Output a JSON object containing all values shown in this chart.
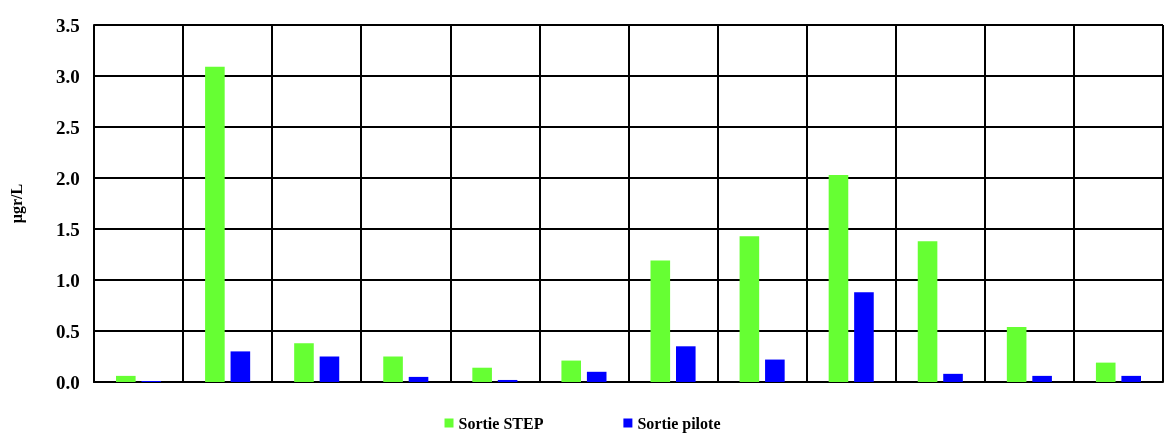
{
  "chart_data": {
    "type": "bar",
    "ylabel": "µgr/L",
    "categories": [
      null,
      null,
      null,
      null,
      null,
      null,
      null,
      null,
      null,
      null,
      null,
      null
    ],
    "series": [
      {
        "name": "Sortie STEP",
        "color": "#66ff33",
        "values": [
          0.06,
          3.09,
          0.38,
          0.25,
          0.14,
          0.21,
          1.19,
          1.43,
          2.03,
          1.38,
          0.54,
          0.19
        ]
      },
      {
        "name": "Sortie pilote",
        "color": "#0000ff",
        "values": [
          0.01,
          0.3,
          0.25,
          0.05,
          0.02,
          0.1,
          0.35,
          0.22,
          0.88,
          0.08,
          0.06,
          0.06
        ]
      }
    ],
    "ylim": [
      0,
      3.5
    ],
    "yticks": [
      {
        "value": 0,
        "label": "0.0"
      },
      0.5,
      {
        "value": 1,
        "label": "1.0"
      },
      1.5,
      {
        "value": 2,
        "label": "2.0"
      },
      2.5,
      {
        "value": 3,
        "label": "3.0"
      },
      3.5
    ],
    "grid": true,
    "legend": "bottom"
  }
}
